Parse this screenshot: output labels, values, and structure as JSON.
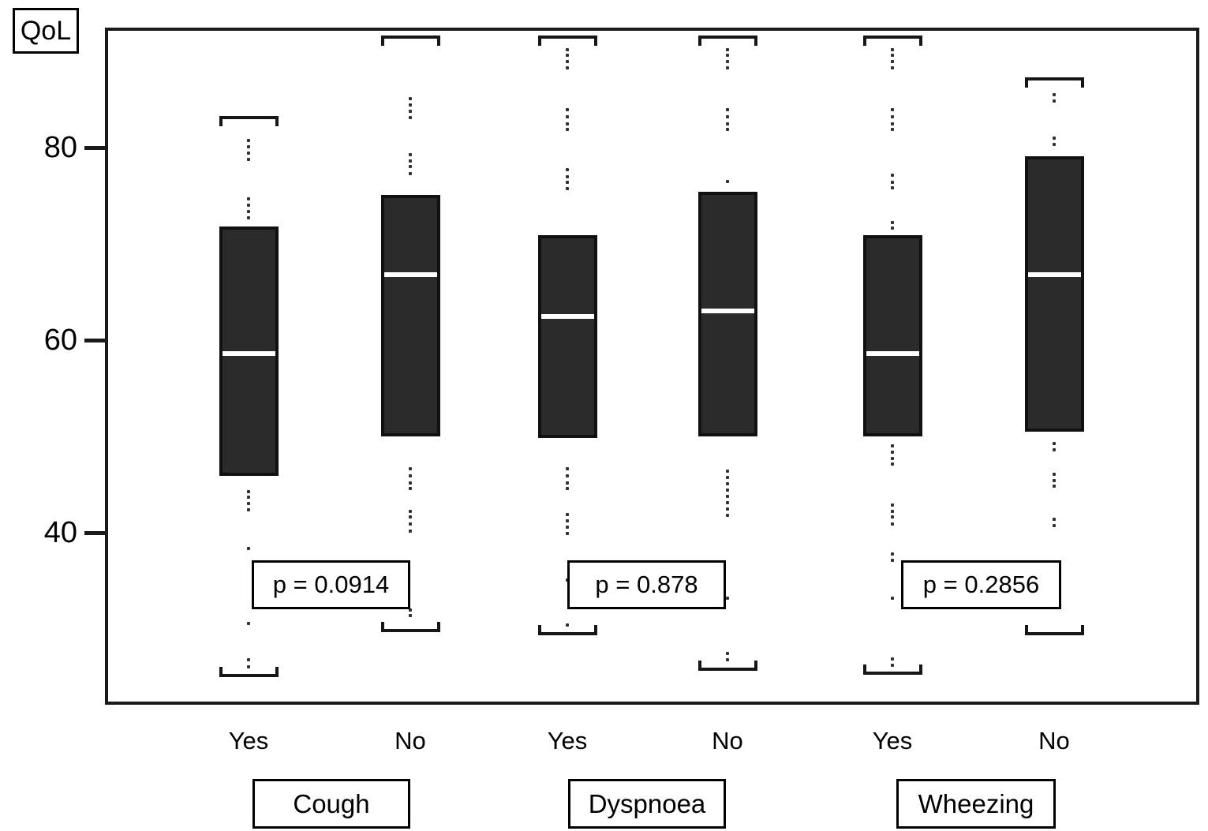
{
  "figure": {
    "y_axis_title": "QoL"
  },
  "chart_data": {
    "type": "box",
    "title": "",
    "ylabel": "QoL",
    "xlabel": "",
    "yticks": [
      "80",
      "60",
      "40"
    ],
    "ytick_values": [
      80,
      60,
      40
    ],
    "ylim": [
      22,
      92.5
    ],
    "grid": false,
    "legend": "none",
    "groups": [
      {
        "label": "Cough",
        "p_text": "p = 0.0914"
      },
      {
        "label": "Dyspnoea",
        "p_text": "p = 0.878"
      },
      {
        "label": "Wheezing",
        "p_text": "p = 0.2856"
      }
    ],
    "columns": [
      {
        "group": "Cough",
        "label": "Yes",
        "whisker_high": 83.3,
        "q3": 71.8,
        "median": 58.6,
        "q1": 45.9,
        "whisker_low": 25.2,
        "dots_above": [
          80.7,
          80.1,
          79.4,
          78.8,
          74.7,
          74.0,
          73.4,
          72.7
        ],
        "dots_below": [
          44.3,
          43.7,
          43.0,
          42.4,
          38.4,
          30.6,
          26.8,
          26.1
        ]
      },
      {
        "group": "Cough",
        "label": "No",
        "whisker_high": 91.6,
        "q3": 75.1,
        "median": 66.8,
        "q1": 50.0,
        "whisker_low": 29.8,
        "dots_above": [
          85.1,
          84.4,
          83.8,
          83.1,
          79.3,
          78.6,
          78.0,
          77.3
        ],
        "dots_below": [
          46.6,
          45.9,
          45.2,
          44.6,
          42.2,
          41.6,
          40.9,
          40.2,
          32.0,
          31.4
        ]
      },
      {
        "group": "Dyspnoea",
        "label": "Yes",
        "whisker_high": 91.6,
        "q3": 70.9,
        "median": 62.5,
        "q1": 49.8,
        "whisker_low": 29.5,
        "dots_above": [
          90.2,
          89.6,
          88.9,
          88.3,
          83.9,
          83.2,
          82.5,
          81.9,
          77.7,
          77.0,
          76.4,
          75.7
        ],
        "dots_below": [
          46.6,
          45.9,
          45.2,
          44.6,
          41.9,
          41.2,
          40.6,
          39.9,
          35.1,
          30.4
        ]
      },
      {
        "group": "Dyspnoea",
        "label": "No",
        "whisker_high": 91.6,
        "q3": 75.4,
        "median": 63.0,
        "q1": 50.0,
        "whisker_low": 25.8,
        "dots_above": [
          90.2,
          89.6,
          88.9,
          88.3,
          83.9,
          83.2,
          82.5,
          81.9,
          76.5
        ],
        "dots_below": [
          46.4,
          45.7,
          45.1,
          44.4,
          43.8,
          43.1,
          42.5,
          41.8,
          33.2,
          27.5,
          26.8
        ]
      },
      {
        "group": "Wheezing",
        "label": "Yes",
        "whisker_high": 91.6,
        "q3": 70.9,
        "median": 58.6,
        "q1": 50.0,
        "whisker_low": 25.4,
        "dots_above": [
          90.2,
          89.6,
          88.9,
          88.3,
          83.9,
          83.2,
          82.5,
          81.9,
          77.1,
          76.4,
          75.8,
          72.2,
          71.6
        ],
        "dots_below": [
          49.0,
          48.4,
          47.7,
          47.1,
          42.9,
          42.2,
          41.6,
          40.9,
          37.8,
          37.1,
          33.2,
          26.9,
          26.2
        ]
      },
      {
        "group": "Wheezing",
        "label": "No",
        "whisker_high": 87.3,
        "q3": 79.1,
        "median": 66.8,
        "q1": 50.5,
        "whisker_low": 29.5,
        "dots_above": [
          85.5,
          84.8,
          81.0,
          80.3
        ],
        "dots_below": [
          49.3,
          48.6,
          46.1,
          45.4,
          44.8,
          41.4,
          40.7,
          33.2,
          32.5
        ]
      }
    ],
    "colors": {
      "box_fill": "#2b2b2b",
      "box_border": "#111111",
      "median": "#ffffff",
      "frame": "#1a1a1a",
      "text": "#000000",
      "background": "#ffffff"
    }
  }
}
